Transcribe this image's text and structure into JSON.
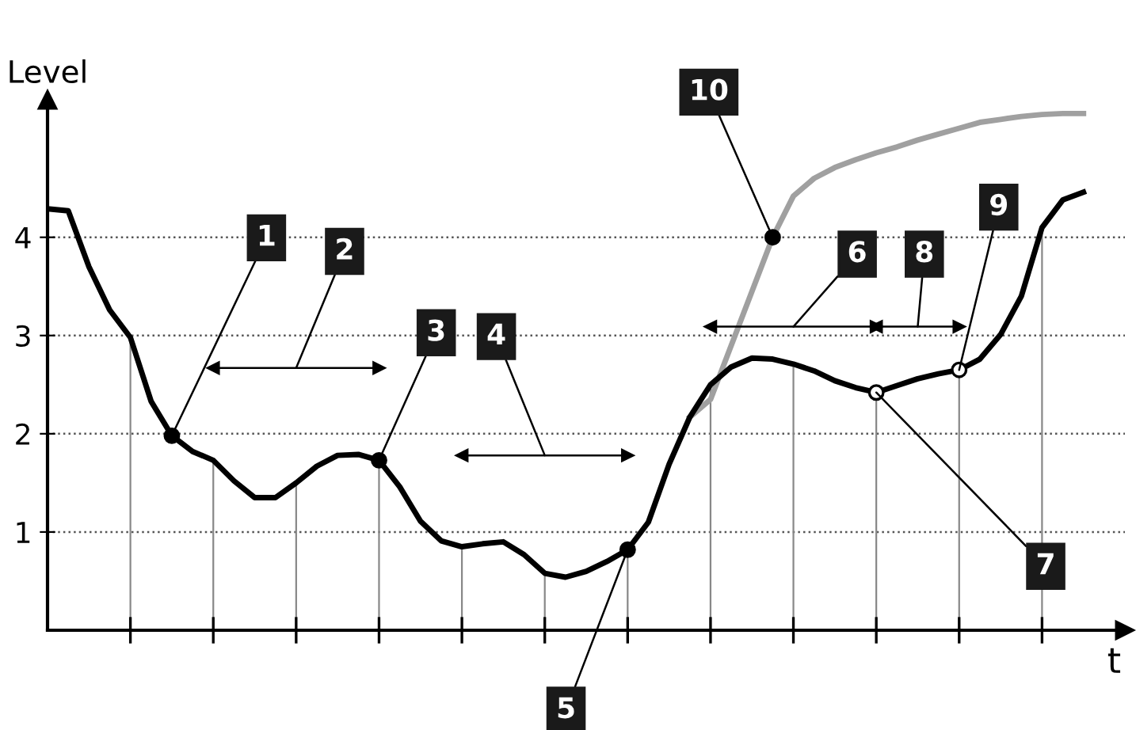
{
  "chart_data": {
    "type": "line",
    "xlabel": "t",
    "ylabel": "Level",
    "categories": [
      null,
      null,
      null,
      null,
      null,
      null,
      null,
      null,
      null,
      null,
      null,
      null,
      null,
      null,
      null,
      null,
      null,
      null,
      null,
      null,
      null,
      null,
      null,
      null,
      null,
      null,
      null,
      null,
      null,
      null,
      null,
      null,
      null,
      null,
      null,
      null,
      null,
      null,
      null,
      null,
      null,
      null,
      null,
      null,
      null,
      null,
      null,
      null,
      null,
      null,
      null
    ],
    "ylim": [
      0,
      5.4
    ],
    "yticks": [
      1,
      2,
      3,
      4
    ],
    "grid": true,
    "marker": "none",
    "series": [
      {
        "color": "#000000",
        "values": [
          4.29,
          4.27,
          3.7,
          3.26,
          2.98,
          2.33,
          1.98,
          1.82,
          1.73,
          1.52,
          1.35,
          1.35,
          1.5,
          1.67,
          1.78,
          1.79,
          1.73,
          1.46,
          1.11,
          0.91,
          0.85,
          0.88,
          0.9,
          0.77,
          0.58,
          0.54,
          0.6,
          0.7,
          0.82,
          1.1,
          1.69,
          2.17,
          2.5,
          2.68,
          2.77,
          2.76,
          2.71,
          2.64,
          2.54,
          2.47,
          2.42,
          2.49,
          2.56,
          2.61,
          2.65,
          2.76,
          3.01,
          3.4,
          4.1,
          4.38,
          4.46
        ]
      },
      {
        "color": "#a0a0a0",
        "values": [
          null,
          null,
          null,
          null,
          null,
          null,
          null,
          null,
          null,
          null,
          null,
          null,
          null,
          null,
          null,
          null,
          null,
          null,
          null,
          null,
          null,
          null,
          null,
          null,
          null,
          null,
          null,
          null,
          null,
          null,
          null,
          2.17,
          2.35,
          2.9,
          3.45,
          4.0,
          4.42,
          4.6,
          4.71,
          4.79,
          4.86,
          4.92,
          4.99,
          5.05,
          5.11,
          5.17,
          5.2,
          5.23,
          5.25,
          5.26,
          5.26
        ]
      },
      {
        "color": "#000000",
        "values": [
          null,
          null,
          null,
          null,
          null,
          null,
          null,
          null,
          2.67,
          2.67,
          2.67,
          2.67,
          2.67,
          2.67,
          2.67,
          2.67,
          2.67,
          null,
          null,
          null,
          null,
          null,
          null,
          null,
          null,
          null,
          null,
          null,
          null,
          null,
          null,
          null,
          null,
          null,
          null,
          null,
          null,
          null,
          null,
          null,
          null,
          null,
          null,
          null,
          null,
          null,
          null,
          null,
          null,
          null,
          null
        ]
      },
      {
        "color": "#000000",
        "values": [
          null,
          null,
          null,
          null,
          null,
          null,
          null,
          null,
          null,
          null,
          null,
          null,
          null,
          null,
          null,
          null,
          null,
          null,
          null,
          null,
          1.78,
          1.78,
          1.78,
          1.78,
          1.78,
          1.78,
          1.78,
          1.78,
          1.78,
          null,
          null,
          null,
          null,
          null,
          null,
          null,
          null,
          null,
          null,
          null,
          null,
          null,
          null,
          null,
          null,
          null,
          null,
          null,
          null,
          null,
          null
        ]
      },
      {
        "color": "#000000",
        "values": [
          null,
          null,
          null,
          null,
          null,
          null,
          null,
          null,
          null,
          null,
          null,
          null,
          null,
          null,
          null,
          null,
          null,
          null,
          null,
          null,
          null,
          null,
          null,
          null,
          null,
          null,
          null,
          null,
          null,
          null,
          null,
          null,
          3.09,
          3.09,
          3.09,
          3.09,
          3.09,
          3.09,
          3.09,
          3.09,
          3.09,
          null,
          null,
          null,
          null,
          null,
          null,
          null,
          null,
          null,
          null
        ]
      },
      {
        "color": "#000000",
        "values": [
          null,
          null,
          null,
          null,
          null,
          null,
          null,
          null,
          null,
          null,
          null,
          null,
          null,
          null,
          null,
          null,
          null,
          null,
          null,
          null,
          null,
          null,
          null,
          null,
          null,
          null,
          null,
          null,
          null,
          null,
          null,
          null,
          null,
          null,
          null,
          null,
          null,
          null,
          null,
          null,
          3.09,
          3.09,
          3.09,
          3.09,
          3.09,
          null,
          null,
          null,
          null,
          null,
          null
        ]
      },
      {
        "type": "scatter",
        "marker": "circle",
        "color": "#000000",
        "values": [
          null,
          null,
          null,
          null,
          null,
          null,
          1.98,
          null,
          null,
          null,
          null,
          null,
          null,
          null,
          null,
          null,
          1.73,
          null,
          null,
          null,
          null,
          null,
          null,
          null,
          null,
          null,
          null,
          null,
          0.82,
          null,
          null,
          null,
          null,
          null,
          null,
          4.0,
          null,
          null,
          null,
          null,
          null,
          null,
          null,
          null,
          null,
          null,
          null,
          null,
          null,
          null,
          null
        ]
      },
      {
        "type": "scatter",
        "marker": "circle",
        "color": "#ffffff",
        "values": [
          null,
          null,
          null,
          null,
          null,
          null,
          null,
          null,
          null,
          null,
          null,
          null,
          null,
          null,
          null,
          null,
          null,
          null,
          null,
          null,
          null,
          null,
          null,
          null,
          null,
          null,
          null,
          null,
          null,
          null,
          null,
          null,
          null,
          null,
          null,
          null,
          null,
          null,
          null,
          null,
          2.42,
          null,
          null,
          null,
          2.65,
          null,
          null,
          null,
          null,
          null,
          null
        ]
      }
    ],
    "annotations": [
      "1",
      "2",
      "3",
      "4",
      "5",
      "6",
      "7",
      "8",
      "9",
      "10"
    ]
  }
}
